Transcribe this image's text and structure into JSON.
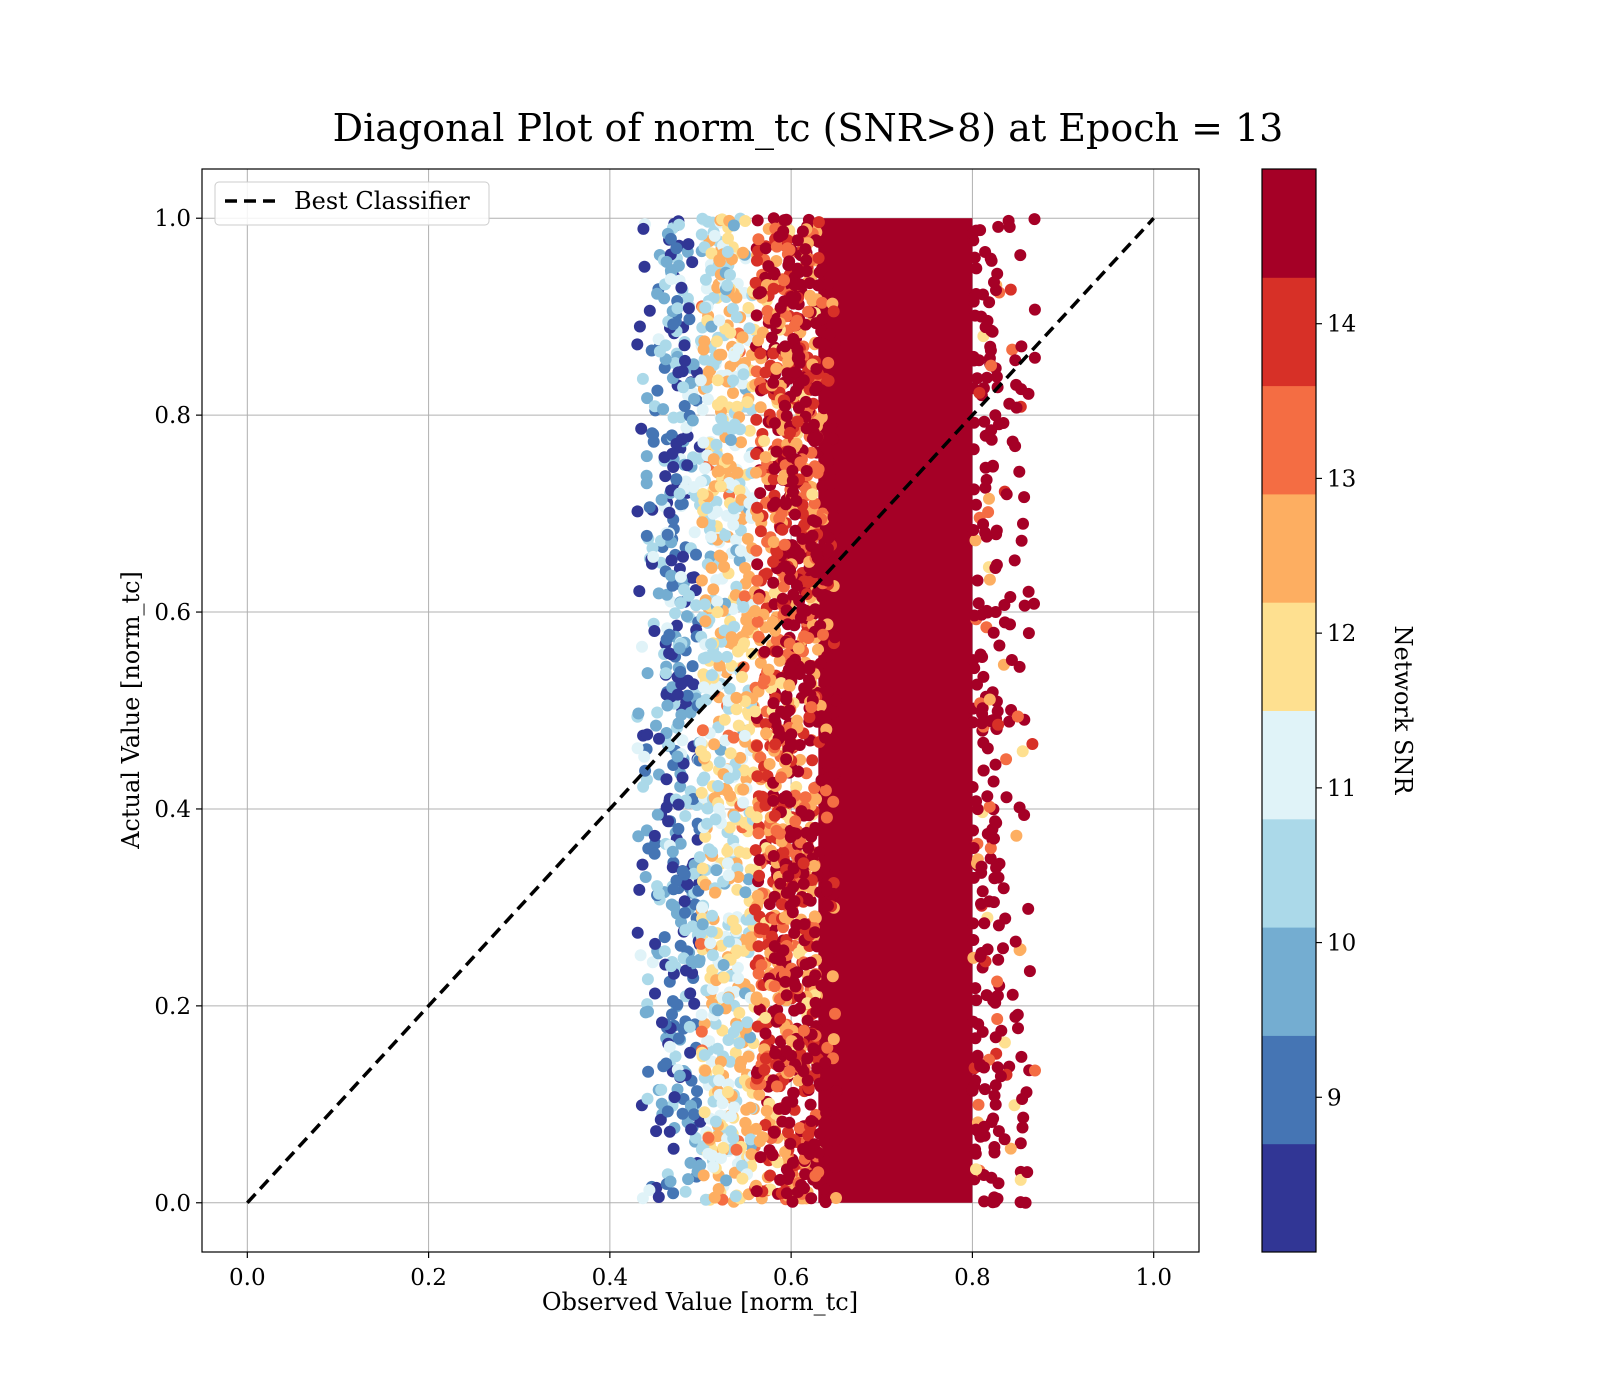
{
  "chart_data": {
    "type": "scatter",
    "title": "Diagonal Plot of norm_tc (SNR>8) at Epoch = 13",
    "xlabel": "Observed Value [norm_tc]",
    "ylabel": "Actual Value [norm_tc]",
    "xlim": [
      -0.05,
      1.05
    ],
    "ylim": [
      -0.05,
      1.05
    ],
    "x_ticks": [
      0.0,
      0.2,
      0.4,
      0.6,
      0.8,
      1.0
    ],
    "y_ticks": [
      0.0,
      0.2,
      0.4,
      0.6,
      0.8,
      1.0
    ],
    "x_tick_labels": [
      "0.0",
      "0.2",
      "0.4",
      "0.6",
      "0.8",
      "1.0"
    ],
    "y_tick_labels": [
      "0.0",
      "0.2",
      "0.4",
      "0.6",
      "0.8",
      "1.0"
    ],
    "grid": true,
    "legend": {
      "placement": "top-left",
      "entries": [
        "Best Classifier"
      ]
    },
    "reference_line": {
      "name": "Best Classifier",
      "style": "dashed",
      "color": "#000000",
      "x": [
        0.0,
        1.0
      ],
      "y": [
        0.0,
        1.0
      ]
    },
    "colorbar": {
      "label": "Network SNR",
      "range": [
        8,
        15
      ],
      "ticks": [
        9,
        10,
        11,
        12,
        13,
        14
      ],
      "tick_labels": [
        "9",
        "10",
        "11",
        "12",
        "13",
        "14"
      ],
      "boundaries": [
        8,
        8.7,
        9.4,
        10.1,
        10.8,
        11.5,
        12.2,
        12.9,
        13.6,
        14.3,
        15
      ],
      "colors": [
        "#313695",
        "#4575b4",
        "#74add1",
        "#abd9e9",
        "#e0f3f8",
        "#fee090",
        "#fdae61",
        "#f46d43",
        "#d73027",
        "#a50026"
      ]
    },
    "scatter_distribution": {
      "x_range": [
        0.43,
        0.87
      ],
      "y_range": [
        0.0,
        1.0
      ],
      "bands": [
        {
          "x": [
            0.43,
            0.5
          ],
          "snr": [
            8.0,
            11.0
          ]
        },
        {
          "x": [
            0.5,
            0.56
          ],
          "snr": [
            10.0,
            13.0
          ]
        },
        {
          "x": [
            0.56,
            0.63
          ],
          "snr": [
            12.0,
            15.0
          ]
        },
        {
          "x": [
            0.63,
            0.8
          ],
          "snr": [
            14.5,
            15.0
          ]
        },
        {
          "x": [
            0.8,
            0.87
          ],
          "snr": [
            12.0,
            15.0
          ]
        }
      ]
    }
  }
}
